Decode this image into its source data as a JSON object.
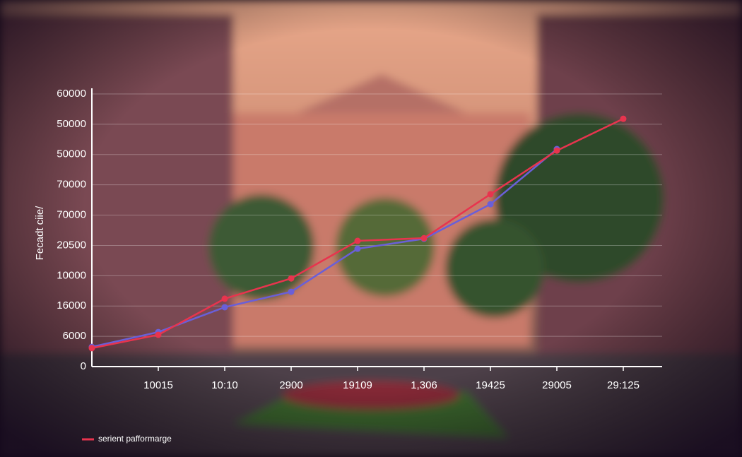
{
  "chart_data": {
    "type": "line",
    "y_label": "Fecadt ciie/",
    "categories": [
      null,
      "10015",
      "10:10",
      "2900",
      "19109",
      "1,306",
      "19425",
      "29005",
      "29:125"
    ],
    "series": [
      {
        "name": "serient pafformarge",
        "color": "#e8344e",
        "values": [
          0.61,
          1.05,
          2.24,
          2.91,
          4.15,
          4.24,
          5.69,
          7.13,
          8.18
        ]
      },
      {
        "color": "#6a5fd8",
        "values": [
          0.65,
          1.14,
          1.96,
          2.47,
          3.89,
          4.22,
          5.36,
          7.18,
          null
        ]
      }
    ],
    "ylim": [
      0,
      9
    ],
    "yticks": [
      {
        "value": 0,
        "label": "0"
      },
      {
        "value": 1,
        "label": "6000"
      },
      {
        "value": 2,
        "label": "16000"
      },
      {
        "value": 3,
        "label": "10000"
      },
      {
        "value": 4,
        "label": "20500"
      },
      {
        "value": 5,
        "label": "70000"
      },
      {
        "value": 6,
        "label": "70000"
      },
      {
        "value": 7,
        "label": "50000"
      },
      {
        "value": 8,
        "label": "50000"
      },
      {
        "value": 9,
        "label": "60000"
      }
    ],
    "grid": true,
    "legend": "bottom-left"
  }
}
